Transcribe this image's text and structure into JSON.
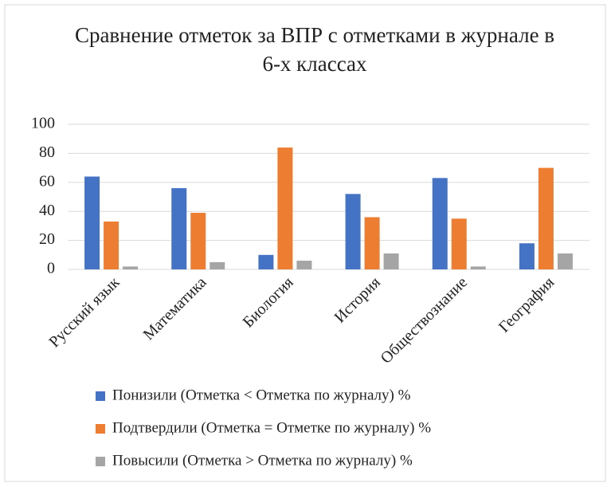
{
  "chart_data": {
    "type": "bar",
    "title": "Сравнение отметок за ВПР с отметками в журнале в 6-х классах",
    "categories": [
      "Русский язык",
      "Математика",
      "Биология",
      "История",
      "Обществознание",
      "География"
    ],
    "series": [
      {
        "name": "Понизили (Отметка < Отметка по журналу) %",
        "color": "#4472c4",
        "values": [
          64,
          56,
          10,
          52,
          63,
          18
        ]
      },
      {
        "name": "Подтвердили (Отметка = Отметке по журналу) %",
        "color": "#ed7d31",
        "values": [
          33,
          39,
          84,
          36,
          35,
          70
        ]
      },
      {
        "name": "Повысили (Отметка > Отметка по журналу) %",
        "color": "#a5a5a5",
        "values": [
          2,
          5,
          6,
          11,
          2,
          11
        ]
      }
    ],
    "ylim": [
      0,
      100
    ],
    "yticks": [
      0,
      20,
      40,
      60,
      80,
      100
    ],
    "grid": true,
    "legend": "bottom"
  }
}
